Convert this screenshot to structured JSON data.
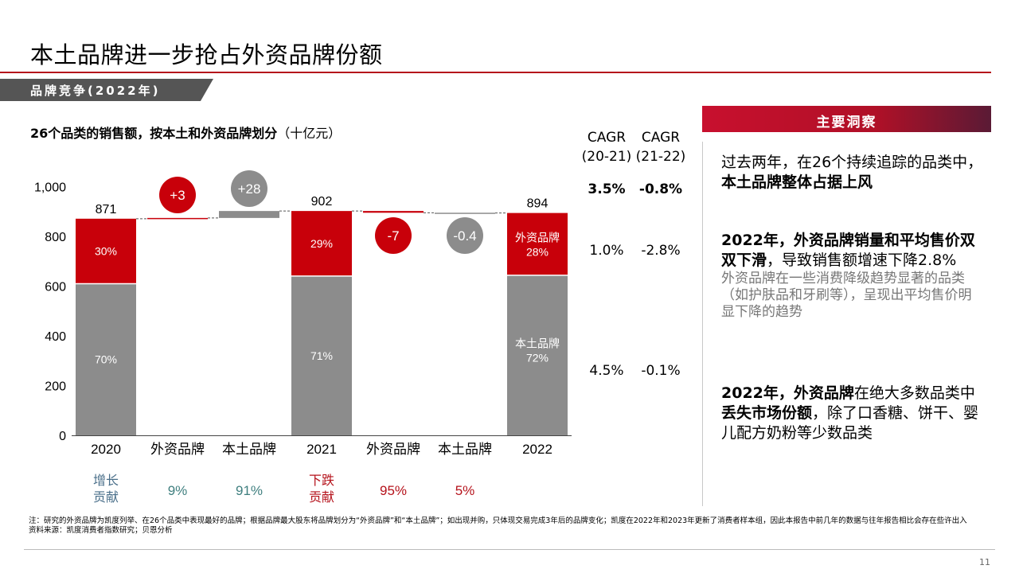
{
  "title": "本土品牌进一步抢占外资品牌份额",
  "section_tag": "品牌竞争(2022年)",
  "chart_title_bold": "26个品类的销售额，按本土和外资品牌划分",
  "chart_title_unit": "（十亿元）",
  "colors": {
    "foreign": "#c8000a",
    "domestic": "#8c8c8c",
    "accent": "#b5121b"
  },
  "chart_data": {
    "type": "bar",
    "stacked_waterfall": true,
    "categories": [
      "2020",
      "外资品牌",
      "本土品牌",
      "2021",
      "外资品牌",
      "本土品牌",
      "2022"
    ],
    "ylim": [
      0,
      1000
    ],
    "yticks": [
      0,
      200,
      400,
      600,
      800,
      1000
    ],
    "ytick_labels": [
      "0",
      "200",
      "400",
      "600",
      "800",
      "1,000"
    ],
    "totals": [
      {
        "category": "2020",
        "total": 871,
        "total_label": "871",
        "domestic_share": 0.7,
        "foreign_share": 0.3,
        "domestic_label": "70%",
        "foreign_label": "30%",
        "domestic_name": "",
        "foreign_name": ""
      },
      {
        "category": "2021",
        "total": 902,
        "total_label": "902",
        "domestic_share": 0.71,
        "foreign_share": 0.29,
        "domestic_label": "71%",
        "foreign_label": "29%",
        "domestic_name": "",
        "foreign_name": ""
      },
      {
        "category": "2022",
        "total": 894,
        "total_label": "894",
        "domestic_share": 0.72,
        "foreign_share": 0.28,
        "domestic_label": "72%",
        "foreign_label": "28%",
        "domestic_name": "本土品牌",
        "foreign_name": "外资品牌"
      }
    ],
    "changes": [
      {
        "category": "外资品牌",
        "value": 3,
        "label": "+3",
        "series": "foreign",
        "base": 871
      },
      {
        "category": "本土品牌",
        "value": 28,
        "label": "+28",
        "series": "domestic",
        "base": 874
      },
      {
        "category": "外资品牌",
        "value": -7,
        "label": "-7",
        "series": "foreign",
        "base": 902
      },
      {
        "category": "本土品牌",
        "value": -0.4,
        "label": "-0.4",
        "series": "domestic",
        "base": 895
      }
    ],
    "contribution": {
      "growth_label": "增长\n贡献",
      "decline_label": "下跌\n贡献",
      "growth_values": [
        "9%",
        "91%"
      ],
      "decline_values": [
        "95%",
        "5%"
      ]
    }
  },
  "cagr": {
    "headers": [
      {
        "line1": "CAGR",
        "line2": "(20-21)"
      },
      {
        "line1": "CAGR",
        "line2": "(21-22)"
      }
    ],
    "rows": [
      {
        "a": "3.5%",
        "b": "-0.8%",
        "bold": true
      },
      {
        "a": "1.0%",
        "b": "-2.8%",
        "bold": false
      },
      {
        "a": "4.5%",
        "b": "-0.1%",
        "bold": false
      }
    ]
  },
  "insights": {
    "header": "主要洞察",
    "p1_pre": "过去两年，在26个持续追踪的品类中，",
    "p1_bold": "本土品牌整体占据上风",
    "p2_bold": "2022年，外资品牌销量和平均售价双双下滑",
    "p2_rest": "，导致销售额增速下降2.8%",
    "p2_sub": "外资品牌在一些消费降级趋势显著的品类（如护肤品和牙刷等），呈现出平均售价明显下降的趋势",
    "p3_bold1": "2022年，外资品牌",
    "p3_mid": "在绝大多数品类中",
    "p3_bold2": "丢失市场份额",
    "p3_rest": "，除了口香糖、饼干、婴儿配方奶粉等少数品类"
  },
  "footnote_1": "注：研究的外资品牌为凯度列举、在26个品类中表现最好的品牌；根据品牌最大股东将品牌划分为“外资品牌”和“本土品牌”；如出现并购，只体现交易完成3年后的品牌变化；凯度在2022年和2023年更新了消费者样本组，因此本报告中前几年的数据与往年报告相比会存在些许出入",
  "footnote_2": "资料来源：凯度消费者指数研究；贝恩分析",
  "page_number": "11"
}
